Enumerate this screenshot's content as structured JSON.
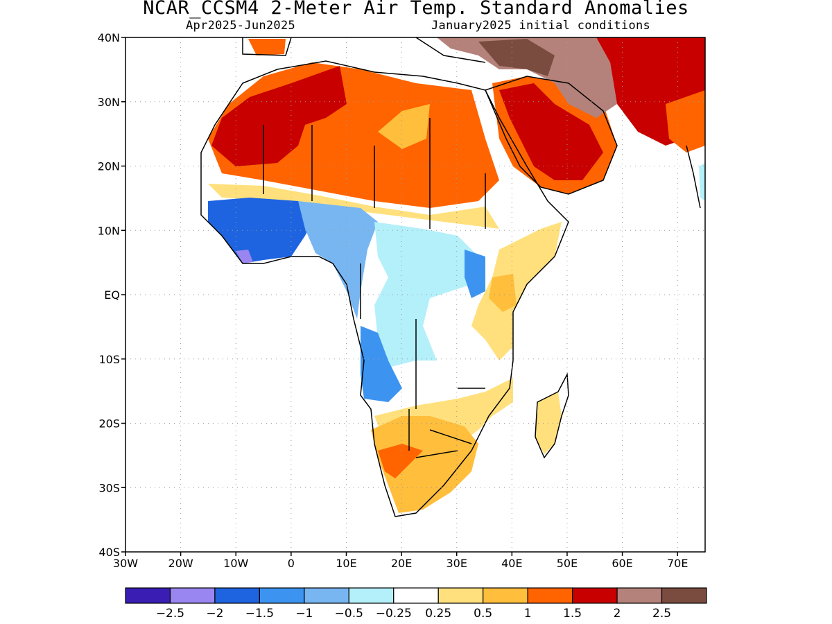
{
  "header": {
    "title": "NCAR_CCSM4 2-Meter Air Temp. Standard Anomalies",
    "period": "Apr2025-Jun2025",
    "init": "January2025 initial conditions"
  },
  "map": {
    "lon_range": [
      -30,
      75
    ],
    "lat_range": [
      -40,
      40
    ],
    "grid": true,
    "y_ticks": [
      {
        "lat": 40,
        "label": "40N"
      },
      {
        "lat": 30,
        "label": "30N"
      },
      {
        "lat": 20,
        "label": "20N"
      },
      {
        "lat": 10,
        "label": "10N"
      },
      {
        "lat": 0,
        "label": "EQ"
      },
      {
        "lat": -10,
        "label": "10S"
      },
      {
        "lat": -20,
        "label": "20S"
      },
      {
        "lat": -30,
        "label": "30S"
      },
      {
        "lat": -40,
        "label": "40S"
      }
    ],
    "x_ticks": [
      {
        "lon": -30,
        "label": "30W"
      },
      {
        "lon": -20,
        "label": "20W"
      },
      {
        "lon": -10,
        "label": "10W"
      },
      {
        "lon": 0,
        "label": "0"
      },
      {
        "lon": 10,
        "label": "10E"
      },
      {
        "lon": 20,
        "label": "20E"
      },
      {
        "lon": 30,
        "label": "30E"
      },
      {
        "lon": 40,
        "label": "40E"
      },
      {
        "lon": 50,
        "label": "50E"
      },
      {
        "lon": 60,
        "label": "60E"
      },
      {
        "lon": 70,
        "label": "70E"
      }
    ]
  },
  "colorbar": {
    "colors": [
      "#3a1eb4",
      "#9a86f0",
      "#1e64e0",
      "#3c94f0",
      "#78b6f2",
      "#b4f0fa",
      "#ffffff",
      "#ffe07c",
      "#ffbe3c",
      "#ff6400",
      "#c80000",
      "#b4827a",
      "#7a4c40"
    ],
    "labels": [
      "-2.5",
      "-2",
      "-1.5",
      "-1",
      "-0.5",
      "-0.25",
      "0.25",
      "0.5",
      "1",
      "1.5",
      "2",
      "2.5"
    ]
  }
}
